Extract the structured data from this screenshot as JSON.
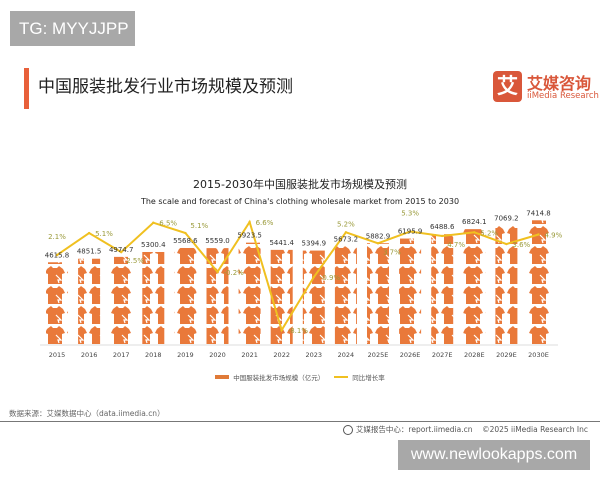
{
  "watermark_top": "TG: MYYJJPP",
  "watermark_bottom": "www.newlookapps.com",
  "header": {
    "title": "中国服装批发行业市场规模及预测"
  },
  "logo": {
    "mark": "艾",
    "name_cn": "艾媒咨询",
    "name_en": "iiMedia Research"
  },
  "footer": {
    "source": "数据来源：艾媒数据中心（data.iimedia.cn）",
    "report": "艾媒报告中心：report.iimedia.cn",
    "copyright": "©2025  iiMedia Research  Inc"
  },
  "colors": {
    "bar": "#e9793a",
    "line": "#f0c020",
    "accent": "#e8603a"
  },
  "chart_data": {
    "type": "bar",
    "title": "2015-2030年中国服装批发市场规模及预测",
    "subtitle": "The scale and forecast of China's clothing wholesale market from 2015 to 2030",
    "categories": [
      "2015",
      "2016",
      "2017",
      "2018",
      "2019",
      "2020",
      "2021",
      "2022",
      "2023",
      "2024",
      "2025E",
      "2026E",
      "2027E",
      "2028E",
      "2029E",
      "2030E"
    ],
    "series": [
      {
        "name": "中国服装批发市场规模（亿元）",
        "type": "pictograph-bar",
        "icon": "shirt-icon",
        "values": [
          4615.8,
          4851.5,
          4974.7,
          5300.4,
          5568.6,
          5559.0,
          5923.5,
          5441.4,
          5394.9,
          5673.2,
          5882.9,
          6195.9,
          6488.6,
          6824.1,
          7069.2,
          7414.8
        ],
        "labels": [
          "4615.8",
          "4851.5",
          "4974.7",
          "5300.4",
          "5568.6",
          "5559.0",
          "5923.5",
          "5441.4",
          "5394.9",
          "5673.2",
          "5882.9",
          "6195.9",
          "6488.6",
          "6824.1",
          "7069.2",
          "7414.8"
        ]
      },
      {
        "name": "同比增长率",
        "type": "line",
        "values": [
          2.1,
          5.1,
          2.5,
          6.5,
          5.1,
          -0.2,
          6.6,
          -8.1,
          -0.9,
          5.2,
          3.7,
          5.3,
          4.7,
          5.2,
          3.6,
          4.9
        ],
        "labels": [
          "2.1%",
          "5.1%",
          "2.5%",
          "6.5%",
          "5.1%",
          "-0.2%",
          "6.6%",
          "-8.1%",
          "-0.9%",
          "5.2%",
          "3.7%",
          "5.3%",
          "4.7%",
          "5.2%",
          "3.6%",
          "4.9%"
        ]
      }
    ],
    "legend": "bottom",
    "grid": false
  }
}
